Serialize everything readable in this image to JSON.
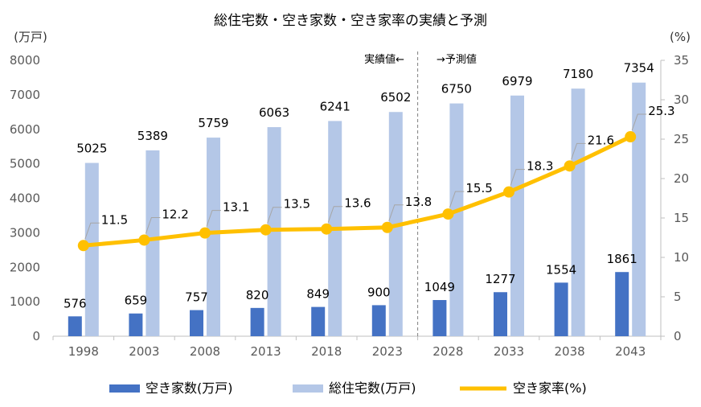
{
  "chart_data": {
    "type": "bar",
    "title": "総住宅数・空き家数・空き家率の実績と予測",
    "y_left_unit": "(万戸)",
    "y_right_unit": "(%)",
    "y_left_range": [
      0,
      8000
    ],
    "y_left_ticks": [
      "0",
      "1000",
      "2000",
      "3000",
      "4000",
      "5000",
      "6000",
      "7000",
      "8000"
    ],
    "y_right_range": [
      0,
      35
    ],
    "y_right_ticks": [
      "0",
      "5",
      "10",
      "15",
      "20",
      "25",
      "30",
      "35"
    ],
    "categories": [
      "1998",
      "2003",
      "2008",
      "2013",
      "2018",
      "2023",
      "2028",
      "2033",
      "2038",
      "2043"
    ],
    "series": [
      {
        "name": "空き家数(万戸)",
        "type": "bar",
        "axis": "left",
        "color": "#4472c4",
        "values": [
          576,
          659,
          757,
          820,
          849,
          900,
          1049,
          1277,
          1554,
          1861
        ],
        "labels": [
          "576",
          "659",
          "757",
          "820",
          "849",
          "900",
          "1049",
          "1277",
          "1554",
          "1861"
        ]
      },
      {
        "name": "総住宅数(万戸)",
        "type": "bar",
        "axis": "left",
        "color": "#b4c7e7",
        "values": [
          5025,
          5389,
          5759,
          6063,
          6241,
          6502,
          6750,
          6979,
          7180,
          7354
        ],
        "labels": [
          "5025",
          "5389",
          "5759",
          "6063",
          "6241",
          "6502",
          "6750",
          "6979",
          "7180",
          "7354"
        ]
      },
      {
        "name": "空き家率(%)",
        "type": "line",
        "axis": "right",
        "color": "#ffc000",
        "values": [
          11.5,
          12.2,
          13.1,
          13.5,
          13.6,
          13.8,
          15.5,
          18.3,
          21.6,
          25.3
        ],
        "labels": [
          "11.5",
          "12.2",
          "13.1",
          "13.5",
          "13.6",
          "13.8",
          "15.5",
          "18.3",
          "21.6",
          "25.3"
        ]
      }
    ],
    "annotations": {
      "actual_label": "実績値←",
      "forecast_label": "→予測値",
      "divider_between": [
        "2023",
        "2028"
      ]
    },
    "legend_position": "bottom",
    "grid": false
  }
}
